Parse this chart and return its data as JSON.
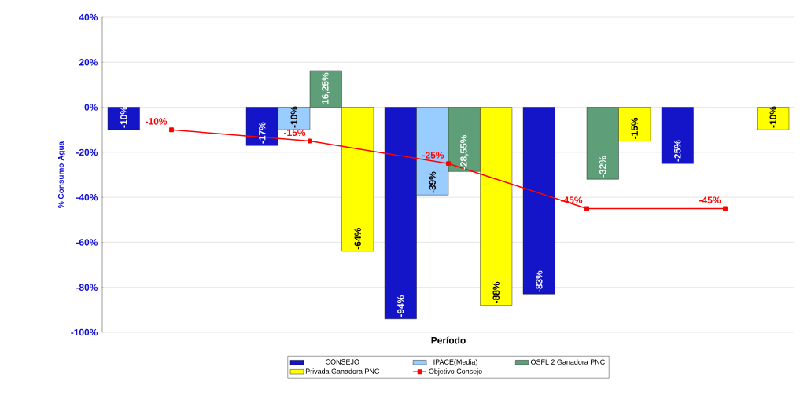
{
  "chart_data": {
    "type": "bar",
    "xlabel": "Período",
    "ylabel": "% Consumo Agua",
    "categories": [
      null,
      null,
      null,
      null,
      null
    ],
    "series": [
      {
        "name": "CONSEJO",
        "color": "#1414c8",
        "values": [
          -10,
          -17,
          -94,
          -83,
          -25
        ],
        "value_labels": [
          "-10%",
          "-17%",
          "-94%",
          "-83%",
          "-25%"
        ]
      },
      {
        "name": "IPACE(Media)",
        "color": "#99ccff",
        "values": [
          null,
          -10,
          -39,
          null,
          null
        ],
        "value_labels": [
          null,
          "-10%",
          "-39%",
          null,
          null
        ]
      },
      {
        "name": "OSFL 2 Ganadora PNC",
        "color": "#5e9e78",
        "values": [
          null,
          16.25,
          -28.55,
          -32,
          null
        ],
        "value_labels": [
          null,
          "16,25%",
          "-28,55%",
          "-32%",
          null
        ]
      },
      {
        "name": "Privada Ganadora PNC",
        "color": "#ffff00",
        "values": [
          null,
          -64,
          -88,
          -15,
          -10
        ],
        "value_labels": [
          null,
          "-64%",
          "-88%",
          "-15%",
          "-10%"
        ]
      },
      {
        "name": "Objetivo Consejo",
        "type": "line",
        "color": "#ff0000",
        "marker": "square",
        "values": [
          -10,
          -15,
          -25,
          -45,
          -45
        ],
        "value_labels": [
          "-10%",
          "-15%",
          "-25%",
          "-45%",
          "-45%"
        ]
      }
    ],
    "ylim": [
      -100,
      40
    ],
    "yticks": [
      {
        "value": -100,
        "label": "-100%"
      },
      {
        "value": -80,
        "label": "-80%"
      },
      {
        "value": -60,
        "label": "-60%"
      },
      {
        "value": -40,
        "label": "-40%"
      },
      {
        "value": -20,
        "label": "-20%"
      },
      {
        "value": 0,
        "label": "0%"
      },
      {
        "value": 20,
        "label": "20%"
      },
      {
        "value": 40,
        "label": "40%"
      }
    ],
    "grid": "y",
    "legend": "bottom"
  }
}
